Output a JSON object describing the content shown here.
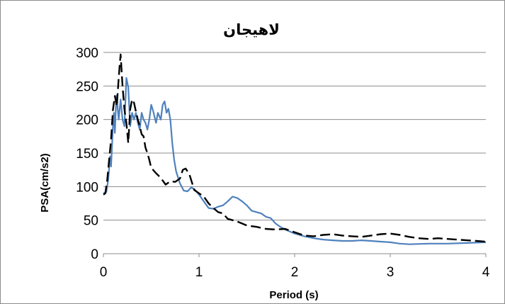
{
  "chart_data": {
    "type": "line",
    "title": "لاهیجان",
    "xlabel": "Period (s)",
    "ylabel": "PSA(cm/s2)",
    "xlim": [
      0,
      4
    ],
    "ylim": [
      0,
      300
    ],
    "x_ticks": [
      "0",
      "1",
      "2",
      "3",
      "4"
    ],
    "y_ticks": [
      "0",
      "50",
      "100",
      "150",
      "200",
      "250",
      "300"
    ],
    "grid": "horizontal",
    "series": [
      {
        "style": "solid",
        "color": "#4f81bd",
        "points": [
          [
            0.0,
            90
          ],
          [
            0.03,
            92
          ],
          [
            0.05,
            110
          ],
          [
            0.07,
            145
          ],
          [
            0.08,
            130
          ],
          [
            0.1,
            190
          ],
          [
            0.11,
            210
          ],
          [
            0.12,
            180
          ],
          [
            0.13,
            218
          ],
          [
            0.14,
            236
          ],
          [
            0.15,
            215
          ],
          [
            0.16,
            200
          ],
          [
            0.18,
            230
          ],
          [
            0.2,
            200
          ],
          [
            0.22,
            190
          ],
          [
            0.24,
            262
          ],
          [
            0.26,
            248
          ],
          [
            0.28,
            190
          ],
          [
            0.3,
            210
          ],
          [
            0.32,
            200
          ],
          [
            0.34,
            210
          ],
          [
            0.36,
            195
          ],
          [
            0.38,
            185
          ],
          [
            0.4,
            210
          ],
          [
            0.42,
            200
          ],
          [
            0.44,
            195
          ],
          [
            0.46,
            185
          ],
          [
            0.48,
            200
          ],
          [
            0.5,
            222
          ],
          [
            0.52,
            213
          ],
          [
            0.55,
            195
          ],
          [
            0.57,
            210
          ],
          [
            0.6,
            200
          ],
          [
            0.62,
            222
          ],
          [
            0.64,
            227
          ],
          [
            0.66,
            210
          ],
          [
            0.68,
            216
          ],
          [
            0.7,
            200
          ],
          [
            0.72,
            165
          ],
          [
            0.74,
            140
          ],
          [
            0.76,
            123
          ],
          [
            0.8,
            105
          ],
          [
            0.84,
            94
          ],
          [
            0.88,
            93
          ],
          [
            0.92,
            99
          ],
          [
            0.96,
            95
          ],
          [
            1.0,
            88
          ],
          [
            1.05,
            78
          ],
          [
            1.1,
            68
          ],
          [
            1.15,
            67
          ],
          [
            1.2,
            70
          ],
          [
            1.25,
            72
          ],
          [
            1.3,
            78
          ],
          [
            1.35,
            85
          ],
          [
            1.4,
            83
          ],
          [
            1.45,
            78
          ],
          [
            1.5,
            72
          ],
          [
            1.55,
            64
          ],
          [
            1.6,
            62
          ],
          [
            1.65,
            60
          ],
          [
            1.7,
            55
          ],
          [
            1.75,
            53
          ],
          [
            1.8,
            45
          ],
          [
            1.85,
            40
          ],
          [
            1.9,
            36
          ],
          [
            1.95,
            33
          ],
          [
            2.0,
            30
          ],
          [
            2.1,
            26
          ],
          [
            2.2,
            23
          ],
          [
            2.3,
            21
          ],
          [
            2.4,
            20
          ],
          [
            2.5,
            19
          ],
          [
            2.6,
            19
          ],
          [
            2.7,
            20
          ],
          [
            2.8,
            19
          ],
          [
            2.9,
            18
          ],
          [
            3.0,
            17
          ],
          [
            3.1,
            15
          ],
          [
            3.2,
            14
          ],
          [
            3.4,
            15
          ],
          [
            3.6,
            15
          ],
          [
            3.8,
            16
          ],
          [
            4.0,
            17
          ]
        ]
      },
      {
        "style": "dashed",
        "color": "#000000",
        "points": [
          [
            0.0,
            88
          ],
          [
            0.02,
            90
          ],
          [
            0.04,
            110
          ],
          [
            0.06,
            140
          ],
          [
            0.08,
            170
          ],
          [
            0.1,
            215
          ],
          [
            0.12,
            235
          ],
          [
            0.14,
            220
          ],
          [
            0.16,
            262
          ],
          [
            0.17,
            280
          ],
          [
            0.18,
            297
          ],
          [
            0.2,
            250
          ],
          [
            0.22,
            215
          ],
          [
            0.24,
            195
          ],
          [
            0.26,
            165
          ],
          [
            0.28,
            215
          ],
          [
            0.3,
            230
          ],
          [
            0.32,
            225
          ],
          [
            0.34,
            212
          ],
          [
            0.36,
            200
          ],
          [
            0.38,
            190
          ],
          [
            0.4,
            178
          ],
          [
            0.42,
            175
          ],
          [
            0.44,
            158
          ],
          [
            0.46,
            150
          ],
          [
            0.48,
            140
          ],
          [
            0.5,
            128
          ],
          [
            0.55,
            120
          ],
          [
            0.6,
            113
          ],
          [
            0.65,
            103
          ],
          [
            0.7,
            108
          ],
          [
            0.75,
            107
          ],
          [
            0.8,
            112
          ],
          [
            0.83,
            125
          ],
          [
            0.86,
            127
          ],
          [
            0.9,
            118
          ],
          [
            0.95,
            95
          ],
          [
            1.0,
            90
          ],
          [
            1.05,
            85
          ],
          [
            1.1,
            75
          ],
          [
            1.15,
            68
          ],
          [
            1.2,
            62
          ],
          [
            1.25,
            60
          ],
          [
            1.3,
            52
          ],
          [
            1.4,
            48
          ],
          [
            1.5,
            42
          ],
          [
            1.6,
            40
          ],
          [
            1.7,
            37
          ],
          [
            1.8,
            36
          ],
          [
            1.9,
            37
          ],
          [
            2.0,
            32
          ],
          [
            2.1,
            27
          ],
          [
            2.2,
            26
          ],
          [
            2.3,
            28
          ],
          [
            2.4,
            29
          ],
          [
            2.5,
            27
          ],
          [
            2.6,
            26
          ],
          [
            2.7,
            25
          ],
          [
            2.8,
            27
          ],
          [
            2.9,
            29
          ],
          [
            3.0,
            30
          ],
          [
            3.1,
            28
          ],
          [
            3.2,
            25
          ],
          [
            3.3,
            23
          ],
          [
            3.4,
            22
          ],
          [
            3.5,
            23
          ],
          [
            3.6,
            22
          ],
          [
            3.7,
            21
          ],
          [
            3.8,
            20
          ],
          [
            3.9,
            19
          ],
          [
            4.0,
            18
          ]
        ]
      }
    ]
  }
}
